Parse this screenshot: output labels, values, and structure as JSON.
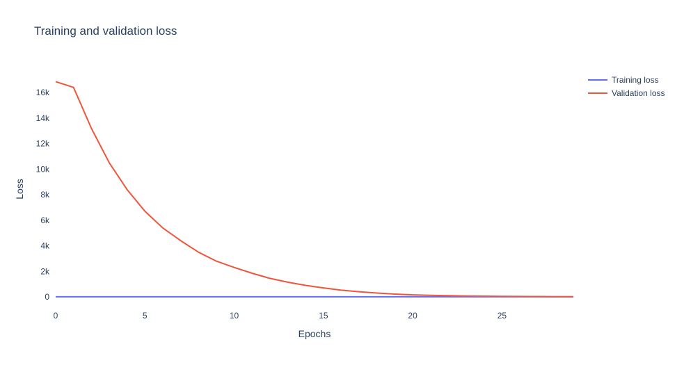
{
  "chart_data": {
    "type": "line",
    "title": "Training and validation loss",
    "xlabel": "Epochs",
    "ylabel": "Loss",
    "xlim": [
      0,
      29
    ],
    "ylim": [
      -1000,
      17700
    ],
    "x_ticks": [
      0,
      5,
      10,
      15,
      20,
      25
    ],
    "y_ticks": [
      {
        "value": 0,
        "label": "0"
      },
      {
        "value": 2000,
        "label": "2k"
      },
      {
        "value": 4000,
        "label": "4k"
      },
      {
        "value": 6000,
        "label": "6k"
      },
      {
        "value": 8000,
        "label": "8k"
      },
      {
        "value": 10000,
        "label": "10k"
      },
      {
        "value": 12000,
        "label": "12k"
      },
      {
        "value": 14000,
        "label": "14k"
      },
      {
        "value": 16000,
        "label": "16k"
      }
    ],
    "grid": false,
    "legend_position": "top-right",
    "x": [
      0,
      1,
      2,
      3,
      4,
      5,
      6,
      7,
      8,
      9,
      10,
      11,
      12,
      13,
      14,
      15,
      16,
      17,
      18,
      19,
      20,
      21,
      22,
      23,
      24,
      25,
      26,
      27,
      28,
      29
    ],
    "series": [
      {
        "name": "Training loss",
        "color": "#636efa",
        "values": [
          5,
          5,
          5,
          5,
          5,
          5,
          5,
          5,
          5,
          5,
          5,
          5,
          5,
          5,
          5,
          5,
          5,
          5,
          5,
          5,
          5,
          5,
          5,
          5,
          5,
          5,
          5,
          5,
          5,
          5
        ]
      },
      {
        "name": "Validation loss",
        "color": "#ef553b",
        "values": [
          16850,
          16400,
          13200,
          10500,
          8400,
          6700,
          5400,
          4400,
          3500,
          2800,
          2300,
          1850,
          1450,
          1150,
          900,
          700,
          520,
          400,
          300,
          220,
          160,
          120,
          90,
          70,
          55,
          45,
          35,
          25,
          15,
          10
        ]
      }
    ]
  }
}
